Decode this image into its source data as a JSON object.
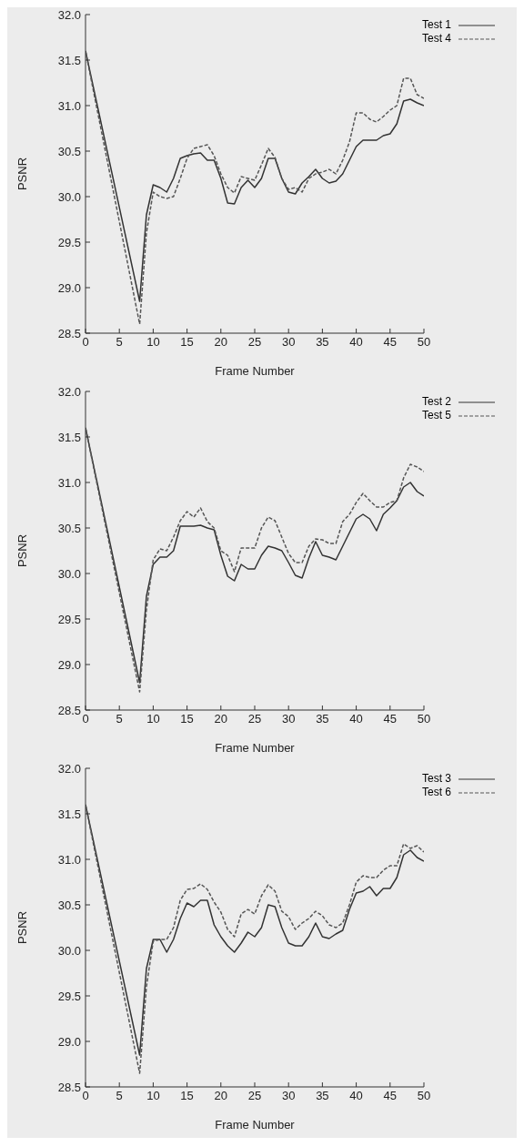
{
  "chart_data": [
    {
      "type": "line",
      "xlabel": "Frame Number",
      "ylabel": "PSNR",
      "xlim": [
        0,
        50
      ],
      "xticks": [
        0,
        5,
        10,
        15,
        20,
        25,
        30,
        35,
        40,
        45,
        50
      ],
      "ylim": [
        28.5,
        32
      ],
      "yticks": [
        28.5,
        {
          "value": 29,
          "label": "29.0"
        },
        29.5,
        {
          "value": 30,
          "label": "30.0"
        },
        30.5,
        {
          "value": 31,
          "label": "31.0"
        },
        31.5,
        {
          "value": 32,
          "label": "32.0"
        }
      ],
      "grid": false,
      "legend": "top right",
      "marker": "none",
      "x": [
        0,
        8,
        9,
        10,
        11,
        12,
        13,
        14,
        15,
        16,
        17,
        18,
        19,
        20,
        21,
        22,
        23,
        24,
        25,
        26,
        27,
        28,
        29,
        30,
        31,
        32,
        33,
        34,
        35,
        36,
        37,
        38,
        39,
        40,
        41,
        42,
        43,
        44,
        45,
        46,
        47,
        48,
        49,
        50
      ],
      "series": [
        {
          "name": "Test 1",
          "color": "#333333",
          "line_style": "solid",
          "values": [
            31.6,
            28.85,
            29.8,
            30.13,
            30.1,
            30.05,
            30.2,
            30.42,
            30.45,
            30.47,
            30.48,
            30.4,
            30.4,
            30.2,
            29.93,
            29.92,
            30.1,
            30.18,
            30.1,
            30.2,
            30.42,
            30.42,
            30.2,
            30.05,
            30.03,
            30.15,
            30.22,
            30.3,
            30.2,
            30.15,
            30.17,
            30.25,
            30.4,
            30.55,
            30.62,
            30.62,
            30.62,
            30.67,
            30.69,
            30.8,
            31.05,
            31.07,
            31.03,
            31.0
          ]
        },
        {
          "name": "Test 4",
          "color": "#555555",
          "line_style": "dashed",
          "values": [
            31.6,
            28.6,
            29.6,
            30.05,
            30.0,
            29.98,
            30.0,
            30.2,
            30.42,
            30.53,
            30.55,
            30.57,
            30.45,
            30.25,
            30.1,
            30.04,
            30.22,
            30.2,
            30.18,
            30.35,
            30.53,
            30.43,
            30.2,
            30.08,
            30.1,
            30.05,
            30.2,
            30.25,
            30.27,
            30.3,
            30.25,
            30.4,
            30.6,
            30.92,
            30.92,
            30.85,
            30.82,
            30.88,
            30.95,
            31.0,
            31.3,
            31.3,
            31.12,
            31.08
          ]
        }
      ]
    },
    {
      "type": "line",
      "xlabel": "Frame Number",
      "ylabel": "PSNR",
      "xlim": [
        0,
        50
      ],
      "xticks": [
        0,
        5,
        10,
        15,
        20,
        25,
        30,
        35,
        40,
        45,
        50
      ],
      "ylim": [
        28.5,
        32
      ],
      "yticks": [
        28.5,
        {
          "value": 29,
          "label": "29.0"
        },
        29.5,
        {
          "value": 30,
          "label": "30.0"
        },
        30.5,
        {
          "value": 31,
          "label": "31.0"
        },
        31.5,
        {
          "value": 32,
          "label": "32.0"
        }
      ],
      "grid": false,
      "legend": "top right",
      "marker": "none",
      "x": [
        0,
        8,
        9,
        10,
        11,
        12,
        13,
        14,
        15,
        16,
        17,
        18,
        19,
        20,
        21,
        22,
        23,
        24,
        25,
        26,
        27,
        28,
        29,
        30,
        31,
        32,
        33,
        34,
        35,
        36,
        37,
        38,
        39,
        40,
        41,
        42,
        43,
        44,
        45,
        46,
        47,
        48,
        49,
        50
      ],
      "series": [
        {
          "name": "Test 2",
          "color": "#333333",
          "line_style": "solid",
          "values": [
            31.6,
            28.8,
            29.75,
            30.1,
            30.18,
            30.18,
            30.25,
            30.52,
            30.52,
            30.52,
            30.53,
            30.5,
            30.48,
            30.2,
            29.97,
            29.92,
            30.1,
            30.05,
            30.05,
            30.2,
            30.3,
            30.28,
            30.25,
            30.12,
            29.98,
            29.95,
            30.17,
            30.35,
            30.2,
            30.18,
            30.15,
            30.3,
            30.45,
            30.6,
            30.65,
            30.6,
            30.47,
            30.65,
            30.72,
            30.8,
            30.95,
            31.0,
            30.9,
            30.85
          ]
        },
        {
          "name": "Test 5",
          "color": "#555555",
          "line_style": "dashed",
          "values": [
            31.6,
            28.7,
            29.6,
            30.15,
            30.27,
            30.25,
            30.4,
            30.58,
            30.68,
            30.62,
            30.72,
            30.57,
            30.5,
            30.25,
            30.2,
            30.02,
            30.28,
            30.28,
            30.28,
            30.5,
            30.62,
            30.58,
            30.4,
            30.22,
            30.12,
            30.12,
            30.3,
            30.38,
            30.37,
            30.33,
            30.33,
            30.57,
            30.65,
            30.78,
            30.88,
            30.8,
            30.73,
            30.73,
            30.78,
            30.8,
            31.05,
            31.2,
            31.17,
            31.12
          ]
        }
      ]
    },
    {
      "type": "line",
      "xlabel": "Frame Number",
      "ylabel": "PSNR",
      "xlim": [
        0,
        50
      ],
      "xticks": [
        0,
        5,
        10,
        15,
        20,
        25,
        30,
        35,
        40,
        45,
        50
      ],
      "ylim": [
        28.5,
        32
      ],
      "yticks": [
        28.5,
        {
          "value": 29,
          "label": "29.0"
        },
        29.5,
        {
          "value": 30,
          "label": "30.0"
        },
        30.5,
        {
          "value": 31,
          "label": "31.0"
        },
        31.5,
        {
          "value": 32,
          "label": "32.0"
        }
      ],
      "grid": false,
      "legend": "top right",
      "marker": "none",
      "x": [
        0,
        8,
        9,
        10,
        11,
        12,
        13,
        14,
        15,
        16,
        17,
        18,
        19,
        20,
        21,
        22,
        23,
        24,
        25,
        26,
        27,
        28,
        29,
        30,
        31,
        32,
        33,
        34,
        35,
        36,
        37,
        38,
        39,
        40,
        41,
        42,
        43,
        44,
        45,
        46,
        47,
        48,
        49,
        50
      ],
      "series": [
        {
          "name": "Test 3",
          "color": "#333333",
          "line_style": "solid",
          "values": [
            31.6,
            28.85,
            29.8,
            30.12,
            30.12,
            29.98,
            30.12,
            30.35,
            30.52,
            30.48,
            30.55,
            30.55,
            30.28,
            30.15,
            30.05,
            29.98,
            30.08,
            30.2,
            30.15,
            30.25,
            30.5,
            30.48,
            30.25,
            30.08,
            30.05,
            30.05,
            30.15,
            30.3,
            30.15,
            30.13,
            30.18,
            30.22,
            30.45,
            30.63,
            30.65,
            30.7,
            30.6,
            30.68,
            30.68,
            30.8,
            31.05,
            31.1,
            31.02,
            30.98
          ]
        },
        {
          "name": "Test 6",
          "color": "#555555",
          "line_style": "dashed",
          "values": [
            31.6,
            28.65,
            29.6,
            30.1,
            30.12,
            30.12,
            30.25,
            30.55,
            30.67,
            30.68,
            30.73,
            30.67,
            30.53,
            30.42,
            30.23,
            30.15,
            30.4,
            30.45,
            30.4,
            30.6,
            30.72,
            30.65,
            30.43,
            30.37,
            30.23,
            30.3,
            30.35,
            30.43,
            30.38,
            30.28,
            30.25,
            30.3,
            30.5,
            30.75,
            30.82,
            30.8,
            30.8,
            30.88,
            30.93,
            30.93,
            31.17,
            31.12,
            31.15,
            31.08
          ]
        }
      ]
    }
  ]
}
